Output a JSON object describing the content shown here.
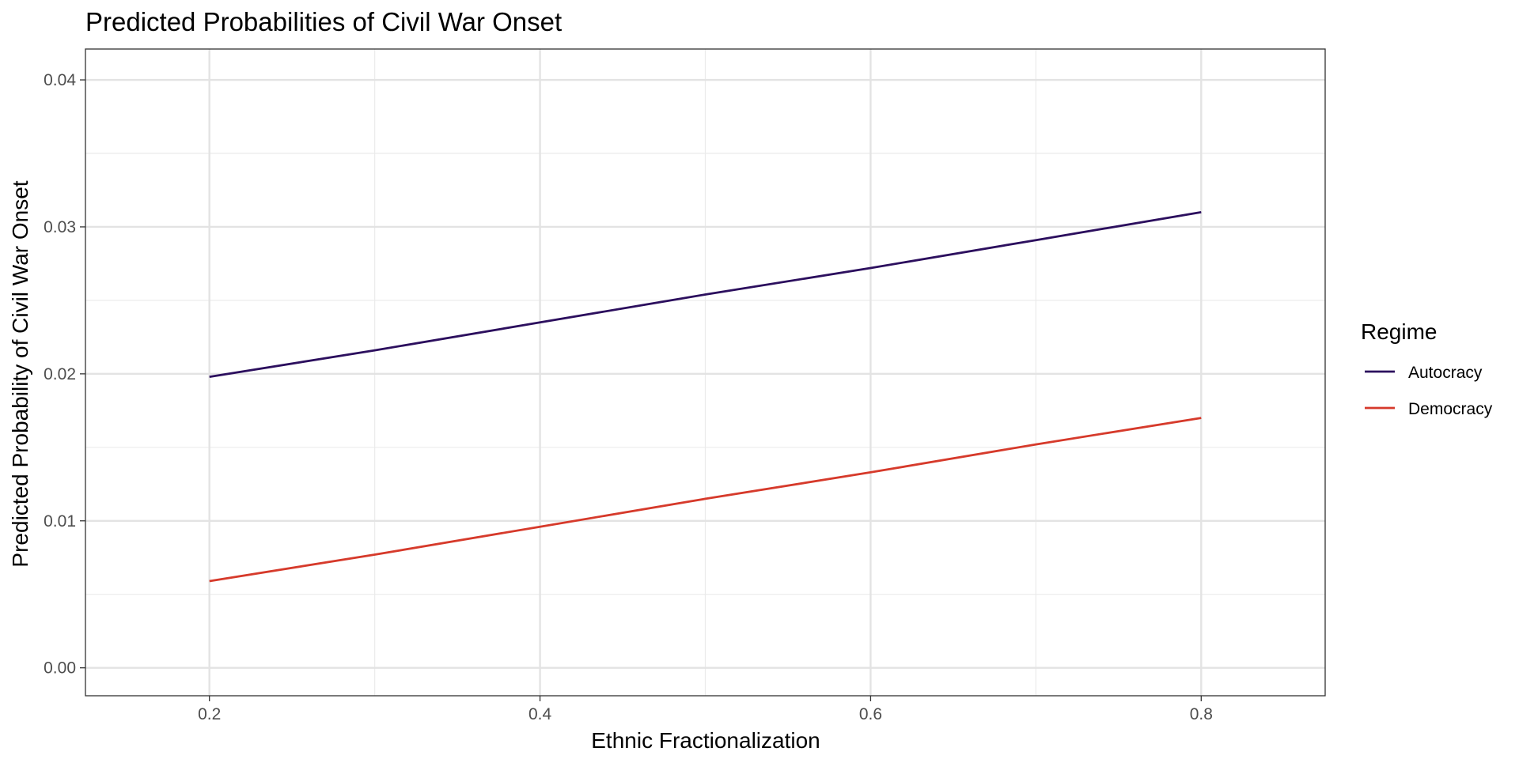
{
  "chart_data": {
    "type": "line",
    "title": "Predicted Probabilities of Civil War Onset",
    "xlabel": "Ethnic Fractionalization",
    "ylabel": "Predicted Probability of Civil War Onset",
    "xlim": [
      0.125,
      0.875
    ],
    "ylim": [
      -0.0019,
      0.0421
    ],
    "x_ticks": [
      0.2,
      0.4,
      0.6,
      0.8
    ],
    "x_tick_labels": [
      "0.2",
      "0.4",
      "0.6",
      "0.8"
    ],
    "x_minor_ticks": [
      0.3,
      0.5,
      0.7
    ],
    "y_ticks": [
      0.0,
      0.01,
      0.02,
      0.03,
      0.04
    ],
    "y_tick_labels": [
      "0.00",
      "0.01",
      "0.02",
      "0.03",
      "0.04"
    ],
    "y_minor_ticks": [
      0.005,
      0.015,
      0.025,
      0.035
    ],
    "grid": true,
    "legend": {
      "title": "Regime",
      "position": "right"
    },
    "series": [
      {
        "name": "Autocracy",
        "color": "#2c0f5e",
        "x": [
          0.2,
          0.3,
          0.4,
          0.5,
          0.6,
          0.7,
          0.8
        ],
        "y": [
          0.0198,
          0.0216,
          0.0235,
          0.0254,
          0.0272,
          0.0291,
          0.031
        ]
      },
      {
        "name": "Democracy",
        "color": "#d63a2b",
        "x": [
          0.2,
          0.3,
          0.4,
          0.5,
          0.6,
          0.7,
          0.8
        ],
        "y": [
          0.0059,
          0.0077,
          0.0096,
          0.0115,
          0.0133,
          0.0152,
          0.017
        ]
      }
    ]
  }
}
